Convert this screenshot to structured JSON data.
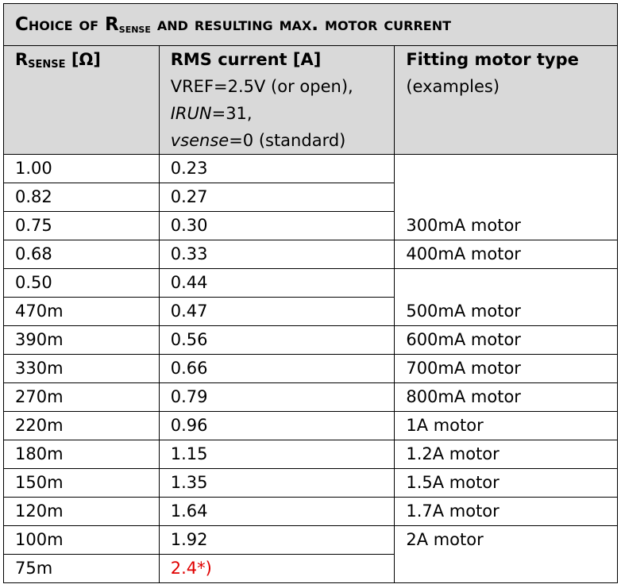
{
  "title": {
    "prefix": "Choice of R",
    "sub": "sense",
    "suffix": " and resulting max. motor current"
  },
  "header": {
    "col1": {
      "main": "R",
      "sub": "SENSE",
      "unit": " [Ω]"
    },
    "col2": {
      "title": "RMS current [A]",
      "line1": "VREF=2.5V (or open),",
      "line2_italic": "IRUN",
      "line2_rest": "=31,",
      "line3_italic": "vsense",
      "line3_rest": "=0 (standard)"
    },
    "col3": {
      "title": "Fitting motor type",
      "note": "(examples)"
    }
  },
  "rows": [
    [
      "1.00",
      "0.23"
    ],
    [
      "0.82",
      "0.27"
    ],
    [
      "0.75",
      "0.30",
      "300mA motor"
    ],
    [
      "0.68",
      "0.33",
      "400mA motor"
    ],
    [
      "0.50",
      "0.44"
    ],
    [
      "470m",
      "0.47",
      "500mA motor"
    ],
    [
      "390m",
      "0.56",
      "600mA motor"
    ],
    [
      "330m",
      "0.66",
      "700mA motor"
    ],
    [
      "270m",
      "0.79",
      "800mA motor"
    ],
    [
      "220m",
      "0.96",
      "1A motor"
    ],
    [
      "180m",
      "1.15",
      "1.2A motor"
    ],
    [
      "150m",
      "1.35",
      "1.5A motor"
    ],
    [
      "120m",
      "1.64",
      "1.7A motor"
    ],
    [
      "100m",
      "1.92",
      "2A motor"
    ],
    [
      "75m",
      "2.4*)"
    ]
  ]
}
